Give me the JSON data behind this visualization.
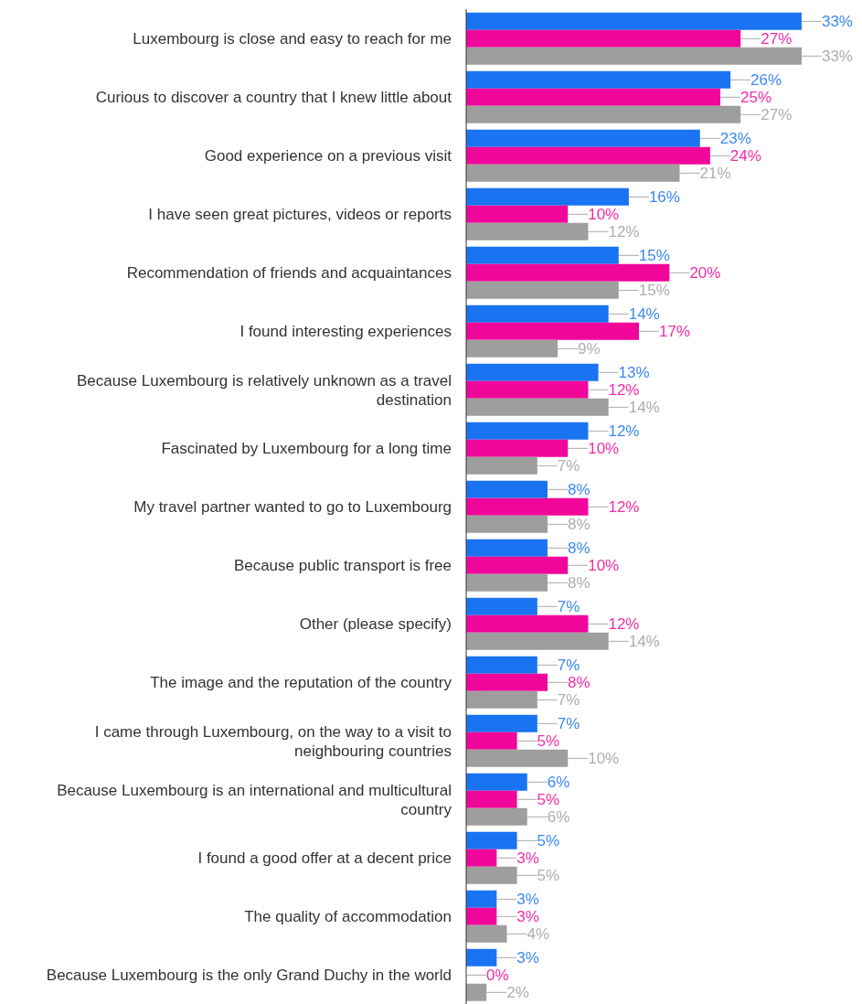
{
  "chart_data": {
    "type": "bar",
    "orientation": "horizontal",
    "tick_labels": "y",
    "categories": [
      "Luxembourg is close and easy to reach for me",
      "Curious to discover a country that I knew little about",
      "Good experience on a previous visit",
      "I have seen great pictures, videos or reports",
      "Recommendation of friends and acquaintances",
      "I found interesting experiences",
      "Because Luxembourg is relatively unknown as a travel destination",
      "Fascinated by Luxembourg for a long time",
      "My travel partner wanted to go to Luxembourg",
      "Because public transport is free",
      "Other (please specify)",
      "The image and the reputation of the country",
      "I came through Luxembourg, on the way to a visit to neighbouring countries",
      "Because Luxembourg is an international and multicultural country",
      "I found a good offer at a decent price",
      "The quality of accommodation",
      "Because Luxembourg is the only Grand Duchy in the world"
    ],
    "series": [
      {
        "color": "#1a73f0",
        "values": [
          33,
          26,
          23,
          16,
          15,
          14,
          13,
          12,
          8,
          8,
          7,
          7,
          7,
          6,
          5,
          3,
          3
        ],
        "value_labels": [
          "33%",
          "26%",
          "23%",
          "16%",
          "15%",
          "14%",
          "13%",
          "12%",
          "8%",
          "8%",
          "7%",
          "7%",
          "7%",
          "6%",
          "5%",
          "3%",
          "3%"
        ]
      },
      {
        "color": "#f0069a",
        "values": [
          27,
          25,
          24,
          10,
          20,
          17,
          12,
          10,
          12,
          10,
          12,
          8,
          5,
          5,
          3,
          3,
          0
        ],
        "value_labels": [
          "27%",
          "25%",
          "24%",
          "10%",
          "20%",
          "17%",
          "12%",
          "10%",
          "12%",
          "10%",
          "12%",
          "8%",
          "5%",
          "5%",
          "3%",
          "3%",
          "0%"
        ]
      },
      {
        "color": "#9e9e9e",
        "values": [
          33,
          27,
          21,
          12,
          15,
          9,
          14,
          7,
          8,
          8,
          14,
          7,
          10,
          6,
          5,
          4,
          2
        ],
        "value_labels": [
          "33%",
          "27%",
          "21%",
          "12%",
          "15%",
          "9%",
          "14%",
          "7%",
          "8%",
          "8%",
          "14%",
          "7%",
          "10%",
          "6%",
          "5%",
          "4%",
          "2%"
        ]
      }
    ]
  }
}
